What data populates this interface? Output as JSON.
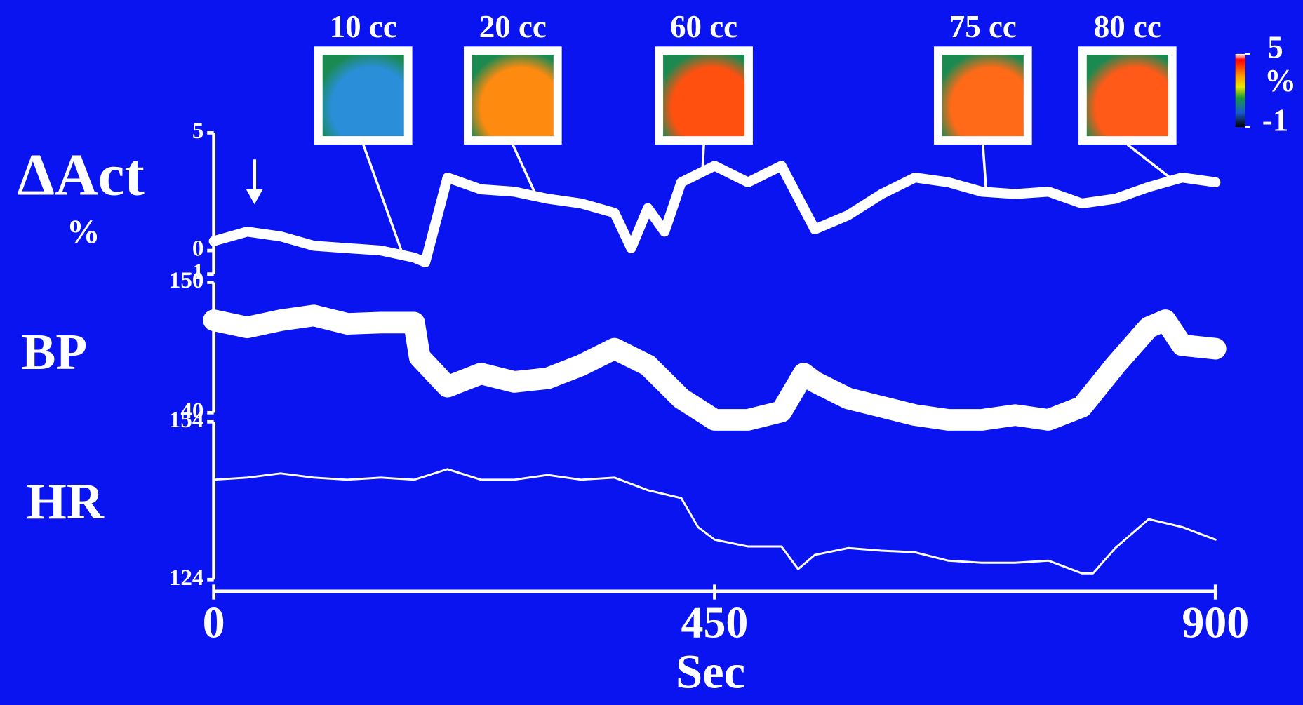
{
  "chart_data": [
    {
      "type": "line",
      "ylabel": "ΔAct",
      "yunit": "%",
      "ylim": [
        -1,
        5
      ],
      "yticks": [
        -1,
        0,
        5
      ],
      "x": [
        0,
        30,
        60,
        90,
        120,
        150,
        180,
        190,
        210,
        240,
        270,
        300,
        330,
        360,
        375,
        390,
        405,
        420,
        450,
        480,
        510,
        540,
        570,
        600,
        630,
        660,
        690,
        720,
        750,
        780,
        810,
        840,
        870,
        900
      ],
      "series": [
        {
          "color": "#ffffff",
          "values": [
            0.4,
            0.8,
            0.6,
            0.2,
            0.1,
            0,
            -0.3,
            -0.5,
            3.1,
            2.6,
            2.5,
            2.2,
            2.0,
            1.6,
            0.1,
            1.8,
            0.8,
            2.9,
            3.6,
            2.9,
            3.6,
            0.9,
            1.5,
            2.4,
            3.1,
            2.9,
            2.5,
            2.4,
            2.5,
            2.0,
            2.2,
            2.7,
            3.1,
            2.9
          ]
        }
      ],
      "insets": [
        {
          "label": "10 cc",
          "x": 170,
          "color": "#2a8fd8"
        },
        {
          "label": "20 cc",
          "x": 290,
          "color": "#ff8a10"
        },
        {
          "label": "60 cc",
          "x": 439,
          "color": "#ff5010"
        },
        {
          "label": "75 cc",
          "x": 694,
          "color": "#ff6a18"
        },
        {
          "label": "80 cc",
          "x": 862,
          "color": "#ff5a18"
        }
      ],
      "colorbar": {
        "lim": [
          -1,
          5
        ],
        "ticks": [
          -1,
          5
        ],
        "label": "%"
      }
    },
    {
      "type": "line",
      "ylabel": "BP",
      "ylim": [
        40,
        150
      ],
      "yticks": [
        40,
        150
      ],
      "x": [
        0,
        30,
        60,
        90,
        120,
        150,
        180,
        185,
        210,
        240,
        270,
        300,
        330,
        360,
        390,
        420,
        450,
        480,
        510,
        530,
        540,
        570,
        600,
        630,
        660,
        690,
        720,
        750,
        780,
        810,
        840,
        855,
        870,
        900
      ],
      "series": [
        {
          "color": "#ffffff",
          "values": [
            118,
            112,
            118,
            122,
            115,
            116,
            116,
            87,
            62,
            73,
            66,
            69,
            80,
            94,
            80,
            52,
            34,
            34,
            41,
            73,
            66,
            52,
            45,
            38,
            34,
            34,
            38,
            34,
            45,
            80,
            112,
            118,
            97,
            94
          ]
        }
      ]
    },
    {
      "type": "line",
      "ylabel": "HR",
      "xlabel": "Sec",
      "ylim": [
        124,
        154
      ],
      "yticks": [
        124,
        154
      ],
      "xlim": [
        0,
        900
      ],
      "xticks": [
        0,
        450,
        900
      ],
      "x": [
        0,
        30,
        60,
        90,
        120,
        150,
        180,
        210,
        240,
        270,
        300,
        330,
        360,
        390,
        420,
        435,
        450,
        480,
        510,
        525,
        540,
        570,
        600,
        630,
        660,
        690,
        720,
        750,
        780,
        790,
        810,
        840,
        870,
        900
      ],
      "series": [
        {
          "color": "#ffffff",
          "values": [
            143,
            143.4,
            144.2,
            143.4,
            143,
            143.4,
            143,
            145,
            143,
            143,
            143.9,
            143,
            143.4,
            141,
            139.5,
            134,
            131.6,
            130.3,
            130.3,
            126,
            128.7,
            130,
            129.5,
            129.2,
            127.6,
            127.2,
            127.2,
            127.6,
            125.2,
            125.2,
            130,
            135.5,
            134,
            131.6
          ]
        }
      ]
    }
  ]
}
